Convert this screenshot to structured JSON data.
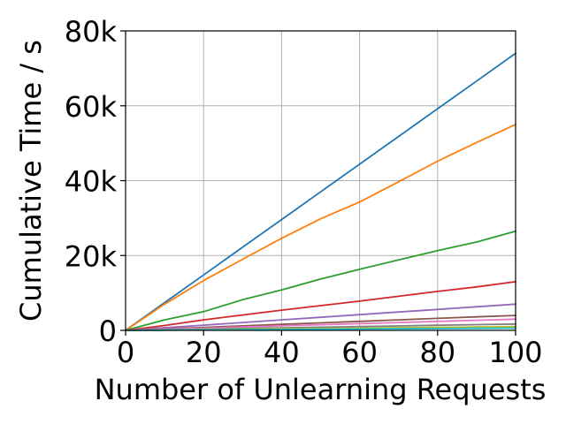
{
  "chart_data": {
    "type": "line",
    "title": "",
    "xlabel": "Number of Unlearning Requests",
    "ylabel": "Cumulative Time / s",
    "xlim": [
      0,
      100
    ],
    "ylim": [
      0,
      80000
    ],
    "grid": true,
    "legend": "none",
    "x_ticks": [
      0,
      20,
      40,
      60,
      80,
      100
    ],
    "x_tick_labels": [
      "0",
      "20",
      "40",
      "60",
      "80",
      "100"
    ],
    "y_ticks": [
      0,
      20000,
      40000,
      60000,
      80000
    ],
    "y_tick_labels": [
      "0",
      "20k",
      "40k",
      "60k",
      "80k"
    ],
    "x": [
      0,
      10,
      20,
      30,
      40,
      50,
      60,
      70,
      80,
      90,
      100
    ],
    "series": [
      {
        "color": "#1f77b4",
        "values": [
          0,
          7400,
          14800,
          22200,
          29600,
          37000,
          44400,
          51800,
          59200,
          66600,
          74000
        ]
      },
      {
        "color": "#ff7f0e",
        "values": [
          0,
          7000,
          13300,
          19000,
          24600,
          29800,
          34300,
          39700,
          45200,
          50200,
          55000
        ]
      },
      {
        "color": "#2ca02c",
        "values": [
          0,
          2800,
          5000,
          8200,
          10800,
          13700,
          16300,
          18800,
          21300,
          23600,
          26500
        ]
      },
      {
        "color": "#d62728",
        "values": [
          0,
          1300,
          2800,
          4100,
          5400,
          6600,
          7800,
          9100,
          10400,
          11600,
          13000
        ]
      },
      {
        "color": "#9467bd",
        "values": [
          0,
          700,
          1400,
          2100,
          2800,
          3500,
          4200,
          4900,
          5600,
          6300,
          7000
        ]
      },
      {
        "color": "#8c564b",
        "values": [
          0,
          400,
          800,
          1200,
          1600,
          2000,
          2400,
          2800,
          3200,
          3600,
          4000
        ]
      },
      {
        "color": "#e377c2",
        "values": [
          0,
          300,
          600,
          900,
          1200,
          1500,
          1800,
          2100,
          2400,
          2700,
          3000
        ]
      },
      {
        "color": "#7f7f7f",
        "values": [
          0,
          170,
          340,
          510,
          680,
          850,
          1020,
          1190,
          1360,
          1530,
          1700
        ]
      },
      {
        "color": "#bcbd22",
        "values": [
          0,
          100,
          200,
          300,
          400,
          500,
          600,
          700,
          800,
          900,
          1000
        ]
      },
      {
        "color": "#17becf",
        "values": [
          0,
          60,
          120,
          180,
          240,
          300,
          360,
          420,
          480,
          540,
          600
        ]
      }
    ]
  }
}
